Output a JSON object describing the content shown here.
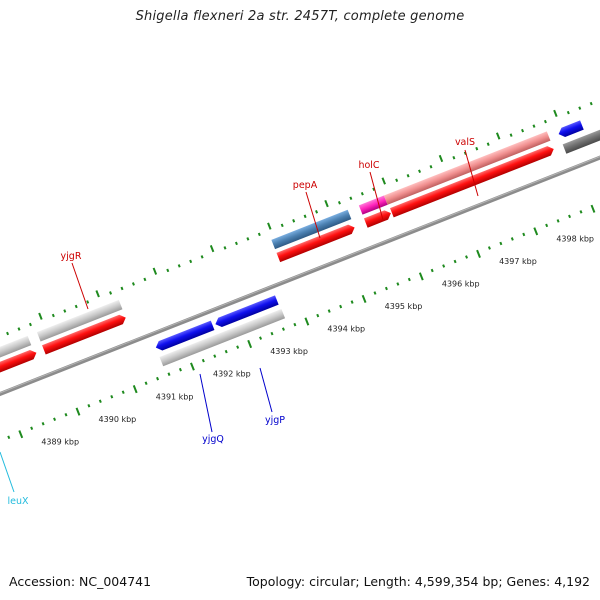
{
  "header": {
    "title": "Shigella flexneri 2a str. 2457T, complete genome"
  },
  "footer": {
    "accession": "Accession: NC_004741",
    "stats": "Topology: circular; Length: 4,599,354 bp; Genes: 4,192"
  },
  "scale": {
    "kbp_labels": [
      "4389 kbp",
      "4390 kbp",
      "4391 kbp",
      "4392 kbp",
      "4393 kbp",
      "4394 kbp",
      "4395 kbp",
      "4396 kbp",
      "4397 kbp",
      "4398 kbp"
    ]
  },
  "genes": {
    "labels": [
      {
        "name": "yjgR",
        "color": "#cc0000"
      },
      {
        "name": "pepA",
        "color": "#cc0000"
      },
      {
        "name": "holC",
        "color": "#cc0000"
      },
      {
        "name": "valS",
        "color": "#cc0000"
      },
      {
        "name": "yjgQ",
        "color": "#0000cc"
      },
      {
        "name": "yjgP",
        "color": "#0000cc"
      },
      {
        "name": "leuX",
        "color": "#22bbdd"
      }
    ]
  },
  "colors": {
    "backbone": "#8c8c8c",
    "cds_red": "#ff1a1a",
    "cds_blue": "#1a1aee",
    "gene_gray": "#c8c8c8",
    "steelblue": "#4a7fb0",
    "pink": "#f08f8f",
    "magenta": "#ff22bb",
    "tick_green": "#1e8a1e"
  }
}
